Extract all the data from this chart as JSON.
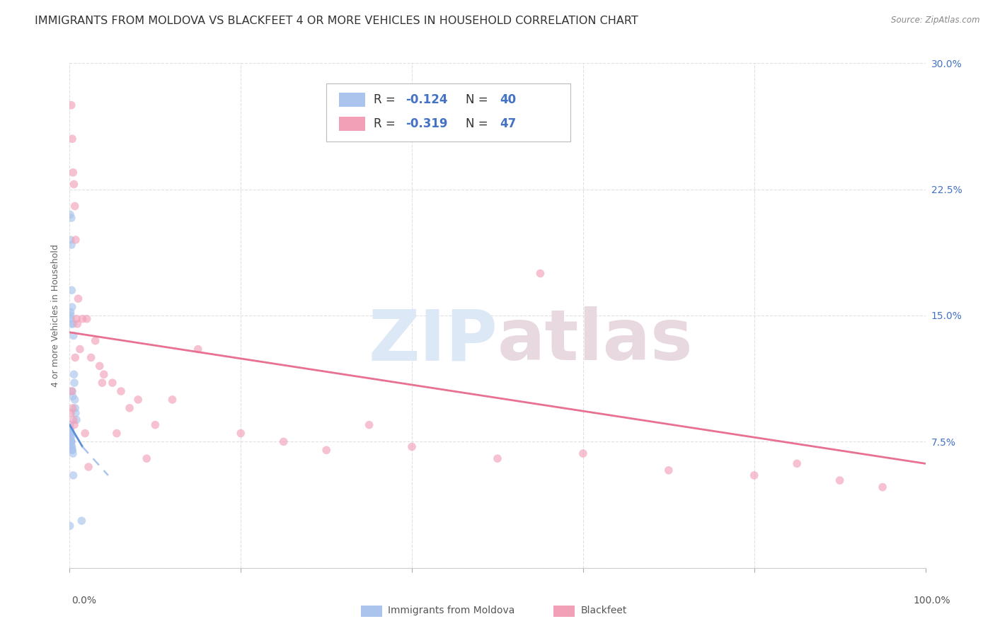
{
  "title": "IMMIGRANTS FROM MOLDOVA VS BLACKFEET 4 OR MORE VEHICLES IN HOUSEHOLD CORRELATION CHART",
  "source": "Source: ZipAtlas.com",
  "ylabel": "4 or more Vehicles in Household",
  "yticks": [
    0.0,
    7.5,
    15.0,
    22.5,
    30.0
  ],
  "xlim": [
    0.0,
    100.0
  ],
  "ylim": [
    0.0,
    30.0
  ],
  "color_moldova": "#aac4ed",
  "color_blackfeet": "#f2a0b8",
  "color_trendline_moldova_solid": "#5b8dd9",
  "color_trendline_moldova_dashed": "#aac4ed",
  "color_trendline_blackfeet": "#e87090",
  "scatter_alpha": 0.65,
  "marker_size": 70,
  "moldova_x": [
    0.05,
    0.08,
    0.1,
    0.12,
    0.15,
    0.18,
    0.2,
    0.22,
    0.25,
    0.28,
    0.3,
    0.35,
    0.4,
    0.45,
    0.5,
    0.55,
    0.6,
    0.65,
    0.7,
    0.8,
    0.04,
    0.06,
    0.09,
    0.11,
    0.13,
    0.16,
    0.19,
    0.23,
    0.27,
    0.32,
    0.03,
    0.07,
    0.14,
    0.17,
    0.21,
    0.26,
    0.38,
    0.42,
    1.4,
    0.02
  ],
  "moldova_y": [
    21.0,
    19.5,
    15.2,
    15.0,
    14.8,
    14.5,
    20.8,
    19.2,
    16.5,
    15.5,
    10.5,
    10.2,
    14.5,
    13.8,
    11.5,
    11.0,
    10.0,
    9.5,
    9.2,
    8.8,
    8.2,
    8.0,
    7.8,
    7.5,
    7.5,
    7.5,
    7.5,
    7.2,
    7.0,
    7.0,
    8.5,
    8.2,
    8.0,
    7.8,
    7.5,
    7.2,
    6.8,
    5.5,
    2.8,
    2.5
  ],
  "blackfeet_x": [
    0.2,
    0.3,
    0.4,
    0.5,
    0.6,
    0.7,
    0.8,
    0.9,
    1.0,
    1.2,
    1.5,
    2.0,
    2.5,
    3.0,
    3.5,
    4.0,
    5.0,
    6.0,
    7.0,
    8.0,
    10.0,
    12.0,
    15.0,
    20.0,
    25.0,
    30.0,
    35.0,
    40.0,
    50.0,
    60.0,
    70.0,
    80.0,
    90.0,
    95.0,
    0.15,
    0.25,
    0.35,
    0.45,
    0.55,
    0.65,
    1.8,
    2.2,
    3.8,
    5.5,
    9.0,
    55.0,
    85.0
  ],
  "blackfeet_y": [
    27.5,
    25.5,
    23.5,
    22.8,
    21.5,
    19.5,
    14.8,
    14.5,
    16.0,
    13.0,
    14.8,
    14.8,
    12.5,
    13.5,
    12.0,
    11.5,
    11.0,
    10.5,
    9.5,
    10.0,
    8.5,
    10.0,
    13.0,
    8.0,
    7.5,
    7.0,
    8.5,
    7.2,
    6.5,
    6.8,
    5.8,
    5.5,
    5.2,
    4.8,
    9.2,
    10.5,
    9.5,
    8.8,
    8.5,
    12.5,
    8.0,
    6.0,
    11.0,
    8.0,
    6.5,
    17.5,
    6.2
  ],
  "mol_trend_x0": 0.0,
  "mol_trend_y0": 8.5,
  "mol_trend_x1": 1.5,
  "mol_trend_y1": 7.2,
  "mol_trend_x2": 4.5,
  "mol_trend_y2": 5.5,
  "bf_trend_x0": 0.0,
  "bf_trend_y0": 14.0,
  "bf_trend_x1": 100.0,
  "bf_trend_y1": 6.2,
  "background_color": "#ffffff",
  "grid_color": "#e0e0e0",
  "watermark_color": "#dce8f5",
  "watermark_color2": "#e8d8e0",
  "title_fontsize": 11.5,
  "axis_label_fontsize": 9,
  "tick_fontsize": 10,
  "legend_fontsize": 12
}
